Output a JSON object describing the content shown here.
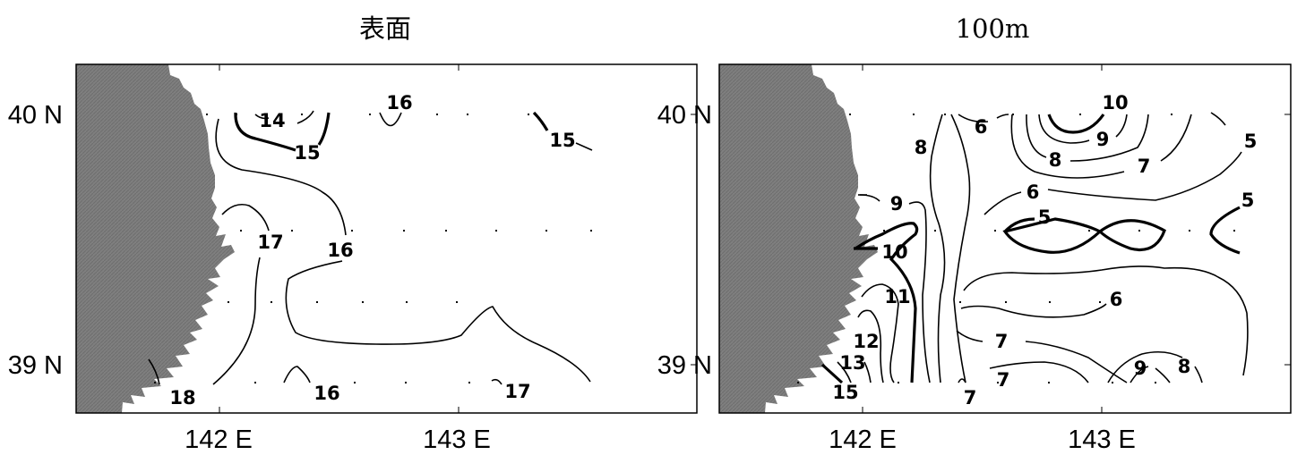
{
  "colors": {
    "land": "#7f7f7f",
    "water": "#ffffff",
    "isoline": "#000000"
  },
  "panels": [
    {
      "title": "表面",
      "lat_labels": [
        "40 N",
        "39 N"
      ],
      "lon_labels": [
        "142 E",
        "143 E"
      ],
      "contour_labels": [
        "14",
        "15",
        "16",
        "15",
        "17",
        "16",
        "18",
        "16",
        "17"
      ]
    },
    {
      "title": "100m",
      "lat_labels": [
        "40 N",
        "39 N"
      ],
      "lon_labels": [
        "142 E",
        "143 E"
      ],
      "contour_labels": [
        "10",
        "6",
        "9",
        "8",
        "8",
        "7",
        "5",
        "9",
        "6",
        "5",
        "5",
        "10",
        "11",
        "6",
        "12",
        "7",
        "13",
        "9",
        "8",
        "15",
        "7",
        "7"
      ]
    }
  ]
}
